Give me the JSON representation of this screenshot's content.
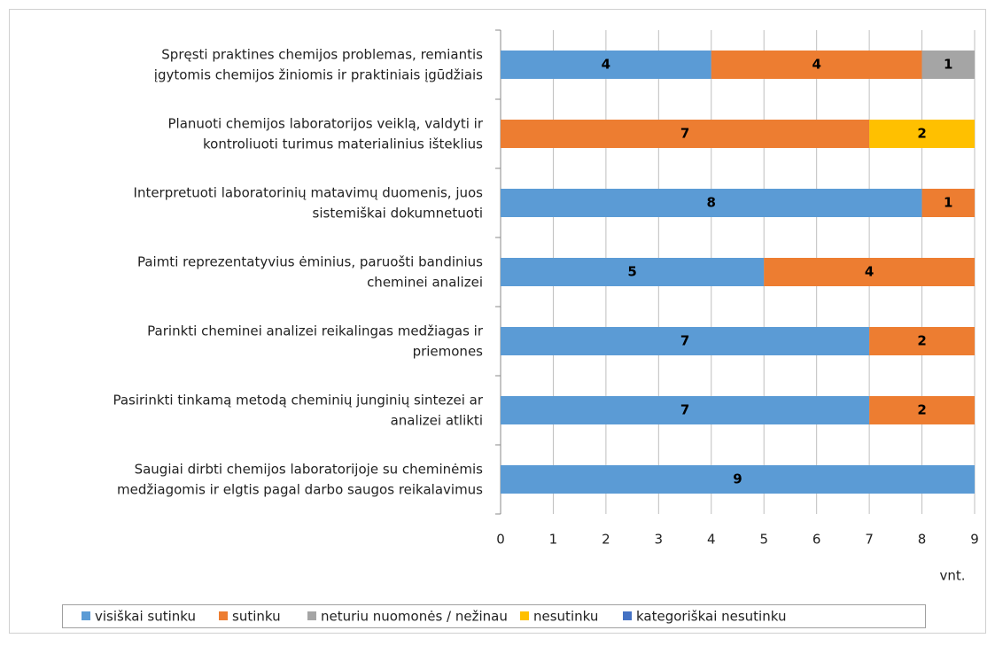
{
  "chart_data": {
    "type": "stacked_barh",
    "categories": [
      [
        "Spręsti praktines chemijos problemas, remiantis",
        "įgytomis chemijos žiniomis ir praktiniais įgūdžiais"
      ],
      [
        "Planuoti chemijos laboratorijos veiklą, valdyti ir",
        "kontroliuoti turimus materialinius išteklius"
      ],
      [
        "Interpretuoti laboratorinių matavimų duomenis, juos",
        "sistemiškai dokumnetuoti"
      ],
      [
        "Paimti reprezentatyvius ėminius, paruošti bandinius",
        "cheminei analizei"
      ],
      [
        "Parinkti cheminei analizei reikalingas medžiagas ir",
        "priemones"
      ],
      [
        "Pasirinkti tinkamą metodą cheminių junginių sintezei ar",
        "analizei atlikti"
      ],
      [
        "Saugiai dirbti chemijos laboratorijoje su cheminėmis",
        "medžiagomis ir elgtis pagal darbo saugos reikalavimus"
      ]
    ],
    "series": [
      {
        "name": "visiškai sutinku",
        "color": "#5b9bd5",
        "values": [
          4,
          null,
          8,
          5,
          7,
          7,
          9
        ]
      },
      {
        "name": "sutinku",
        "color": "#ed7d31",
        "values": [
          4,
          7,
          1,
          4,
          2,
          2,
          null
        ]
      },
      {
        "name": "neturiu nuomonės / nežinau",
        "color": "#a5a5a5",
        "values": [
          1,
          null,
          null,
          null,
          null,
          null,
          null
        ]
      },
      {
        "name": "nesutinku",
        "color": "#ffc000",
        "values": [
          null,
          2,
          null,
          null,
          null,
          null,
          null
        ]
      },
      {
        "name": "kategoriškai nesutinku",
        "color": "#4472c4",
        "values": [
          null,
          null,
          null,
          null,
          null,
          null,
          null
        ]
      }
    ],
    "xlabel": "vnt.",
    "xlim": [
      0,
      9
    ],
    "xticks": [
      0,
      1,
      2,
      3,
      4,
      5,
      6,
      7,
      8,
      9
    ],
    "grid": true,
    "legend": "bottom"
  }
}
